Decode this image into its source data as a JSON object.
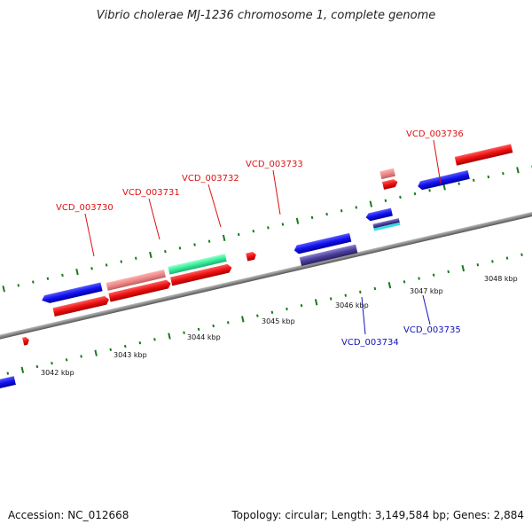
{
  "title": "Vibrio cholerae MJ-1236 chromosome 1, complete genome",
  "footer": {
    "accession": "Accession: NC_012668",
    "topology": "Topology: circular; Length: 3,149,584 bp; Genes: 2,884"
  },
  "colors": {
    "forward_cds": "#e8101a",
    "reverse_cds": "#1111dd",
    "forward_label": "#dd1111",
    "reverse_label": "#1111bb",
    "tick": "#1a7a1a",
    "backbone": "#888888",
    "pink_feature": "#ee8888",
    "teal_feature": "#33ee99",
    "slate_feature": "#4a3f9a"
  },
  "scale_labels": [
    "3042 kbp",
    "3043 kbp",
    "3044 kbp",
    "3045 kbp",
    "3046 kbp",
    "3047 kbp",
    "3048 kbp"
  ],
  "gene_labels_top": [
    "VCD_003730",
    "VCD_003731",
    "VCD_003732",
    "VCD_003733",
    "VCD_003736"
  ],
  "gene_labels_bottom": [
    "VCD_003734",
    "VCD_003735"
  ]
}
